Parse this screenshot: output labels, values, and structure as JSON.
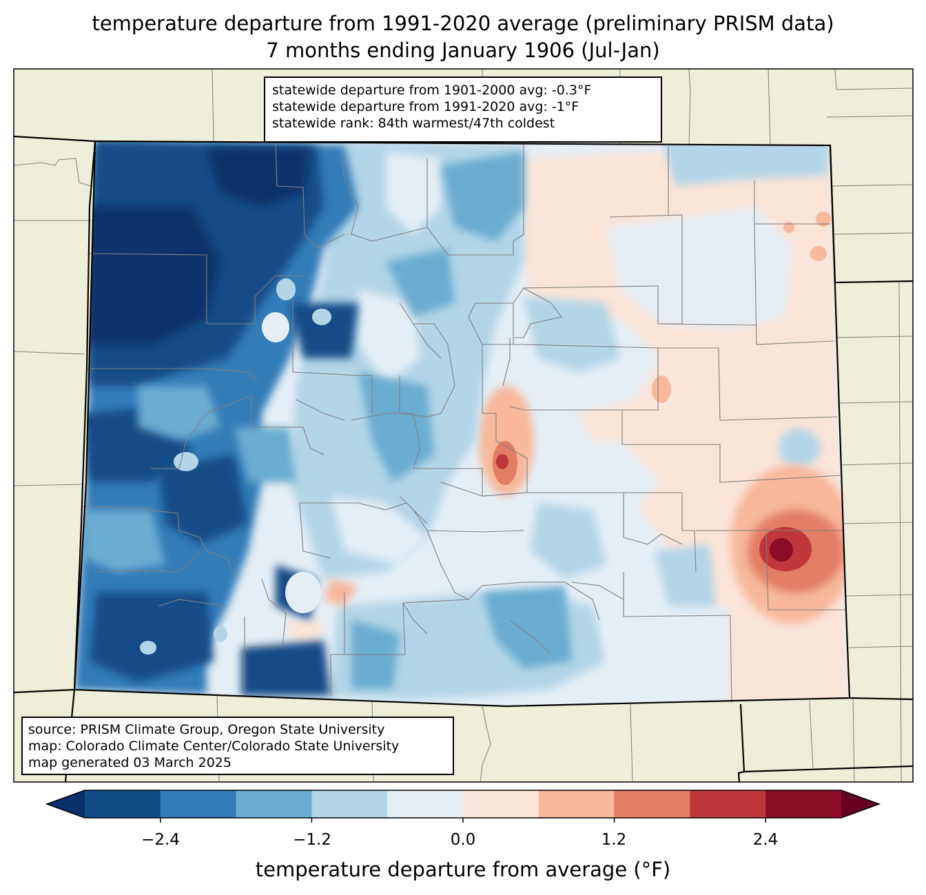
{
  "title": {
    "line1": "temperature departure from 1991-2020 average (preliminary PRISM data)",
    "line2": "7 months ending January 1906 (Jul-Jan)"
  },
  "stats": {
    "line1": "statewide departure from 1901-2000 avg: -0.3°F",
    "line2": "statewide departure from 1991-2020 avg: -1°F",
    "line3": "statewide rank: 84th warmest/47th coldest"
  },
  "source": {
    "line1": "source: PRISM Climate Group, Oregon State University",
    "line2": "map: Colorado Climate Center/Colorado State University",
    "line3": "map generated 03 March 2025"
  },
  "colorbar": {
    "label": "temperature departure from average (°F)",
    "ticks": [
      "−2.4",
      "−1.2",
      "0.0",
      "1.2",
      "2.4"
    ],
    "bins": [
      {
        "min": -3.0,
        "max": -2.4,
        "color": "#134b87"
      },
      {
        "min": -2.4,
        "max": -1.8,
        "color": "#327cb8"
      },
      {
        "min": -1.8,
        "max": -1.2,
        "color": "#6aacd0"
      },
      {
        "min": -1.2,
        "max": -0.6,
        "color": "#b2d5e8"
      },
      {
        "min": -0.6,
        "max": 0.0,
        "color": "#e5eef5"
      },
      {
        "min": 0.0,
        "max": 0.6,
        "color": "#fbe4d8"
      },
      {
        "min": 0.6,
        "max": 1.2,
        "color": "#f7b89b"
      },
      {
        "min": 1.2,
        "max": 1.8,
        "color": "#e27d66"
      },
      {
        "min": 1.8,
        "max": 2.4,
        "color": "#c0373b"
      },
      {
        "min": 2.4,
        "max": 3.0,
        "color": "#8a0c27"
      }
    ],
    "under_color": "#08306b",
    "over_color": "#67001f"
  },
  "colors": {
    "land": "#efeedb",
    "border": "#000000",
    "county": "#808080"
  }
}
